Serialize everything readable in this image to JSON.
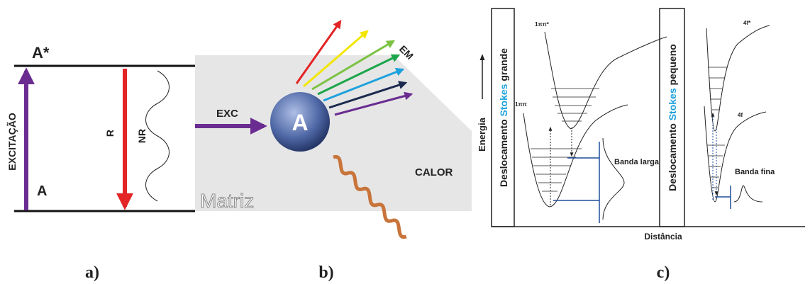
{
  "panel_a": {
    "upper_state": "A*",
    "lower_state": "A",
    "excitation": "EXCITAÇÃO",
    "radiative": "R",
    "nonradiative": "NR",
    "caption": "a)"
  },
  "panel_b": {
    "excitation": "EXC",
    "ion": "A",
    "emission": "EM",
    "heat": "CALOR",
    "matrix": "Matriz",
    "caption": "b)"
  },
  "panel_c": {
    "energy_axis": "Energia",
    "distance_axis": "Distância",
    "left": {
      "title": [
        "Deslocamento",
        "Stokes",
        "grande"
      ],
      "upper_state": "1ππ*",
      "lower_state": "1ππ",
      "band": "Banda larga"
    },
    "right": {
      "title": [
        "Deslocamento",
        "Stokes",
        "pequeno"
      ],
      "upper_state": "4f*",
      "lower_state": "4f",
      "band": "Banda fina"
    },
    "caption": "c)"
  }
}
